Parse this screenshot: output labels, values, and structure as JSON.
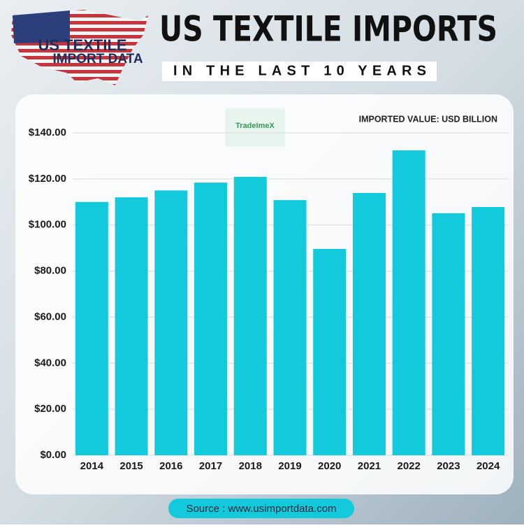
{
  "chart_data": {
    "type": "bar",
    "title": "US TEXTILE IMPORTS",
    "subtitle": "IN THE LAST 10 YEARS",
    "logo_line1": "US TEXTILE",
    "logo_line2": "IMPORT DATA",
    "watermark": "TradeImeX",
    "annotation": "IMPORTED VALUE: USD BILLION",
    "source": "Source : www.usimportdata.com",
    "categories": [
      "2014",
      "2015",
      "2016",
      "2017",
      "2018",
      "2019",
      "2020",
      "2021",
      "2022",
      "2023",
      "2024"
    ],
    "values": [
      110,
      112,
      115,
      118.4,
      120.9,
      110.8,
      89.6,
      113.9,
      132.4,
      105.1,
      107.8
    ],
    "color": "#12cadc",
    "ylim": [
      0,
      140
    ],
    "yticks": [
      {
        "value": 0,
        "label": "$0.00"
      },
      {
        "value": 20,
        "label": "$20.00"
      },
      {
        "value": 40,
        "label": "$40.00"
      },
      {
        "value": 60,
        "label": "$60.00"
      },
      {
        "value": 80,
        "label": "$80.00"
      },
      {
        "value": 100,
        "label": "$100.00"
      },
      {
        "value": 120,
        "label": "$120.00"
      },
      {
        "value": 140,
        "label": "$140.00"
      }
    ],
    "grid": true
  }
}
